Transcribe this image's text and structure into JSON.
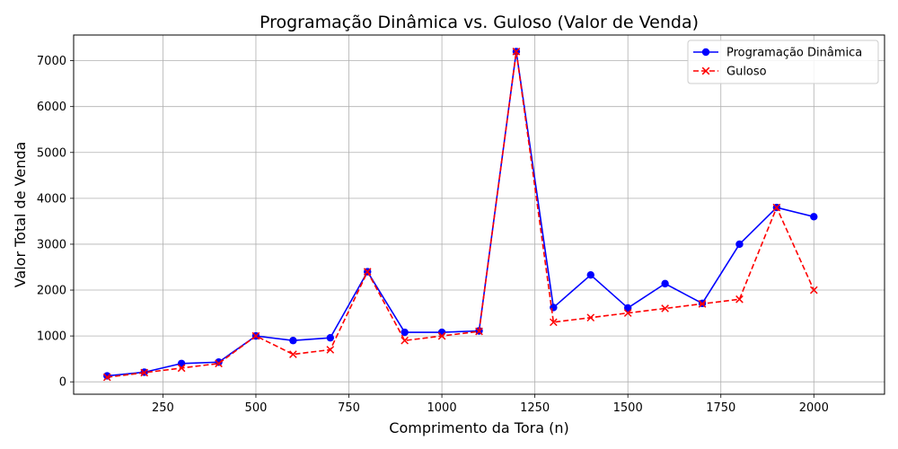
{
  "chart_data": {
    "type": "line",
    "title": "Programação Dinâmica vs. Guloso (Valor de Venda)",
    "xlabel": "Comprimento da Tora (n)",
    "ylabel": "Valor Total de Venda",
    "xlim": [
      10,
      2190
    ],
    "ylim": [
      -270,
      7560
    ],
    "xticks": [
      250,
      500,
      750,
      1000,
      1250,
      1500,
      1750,
      2000
    ],
    "yticks": [
      0,
      1000,
      2000,
      3000,
      4000,
      5000,
      6000,
      7000
    ],
    "grid": true,
    "legend_position": "top-right",
    "x": [
      100,
      200,
      300,
      400,
      500,
      600,
      700,
      800,
      900,
      1000,
      1100,
      1200,
      1300,
      1400,
      1500,
      1600,
      1700,
      1800,
      1900,
      2000
    ],
    "series": [
      {
        "name": "Programação Dinâmica",
        "color": "#0000ff",
        "line_style": "solid",
        "marker": "circle",
        "values": [
          130,
          210,
          400,
          430,
          1000,
          900,
          960,
          2400,
          1080,
          1080,
          1110,
          7200,
          1620,
          2330,
          1610,
          2140,
          1710,
          3000,
          3800,
          3600
        ]
      },
      {
        "name": "Guloso",
        "color": "#ff0000",
        "line_style": "dashed",
        "marker": "x",
        "values": [
          100,
          200,
          300,
          400,
          1000,
          600,
          700,
          2400,
          900,
          1000,
          1100,
          7200,
          1300,
          1400,
          1500,
          1600,
          1700,
          1800,
          3800,
          2000
        ]
      }
    ]
  }
}
